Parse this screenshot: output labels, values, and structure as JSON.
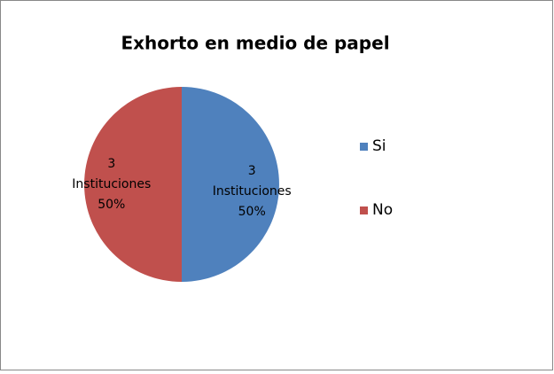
{
  "chart_data": {
    "type": "pie",
    "title": "Exhorto en medio de papel",
    "categories": [
      "Si",
      "No"
    ],
    "values": [
      3,
      3
    ],
    "value_labels": [
      "3\nInstituciones\n50%",
      "3\nInstituciones\n50%"
    ],
    "colors": [
      "#4f81bd",
      "#c0504d"
    ],
    "legend": "right"
  }
}
